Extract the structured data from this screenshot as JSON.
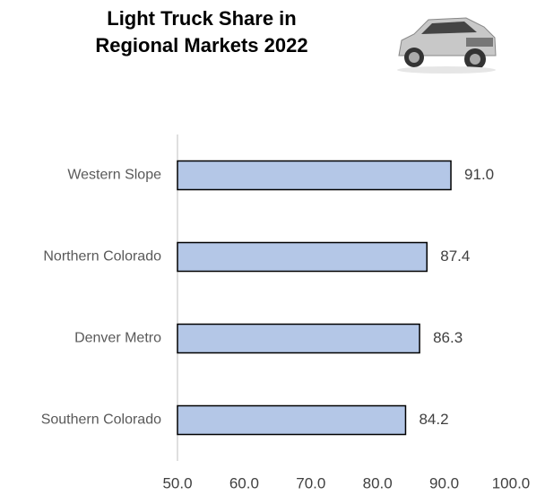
{
  "chart_data": {
    "type": "barh",
    "title": "Light Truck Share in Regional Markets 2022",
    "categories": [
      "Western Slope",
      "Northern Colorado",
      "Denver Metro",
      "Southern Colorado"
    ],
    "values": [
      91.0,
      87.4,
      86.3,
      84.2
    ],
    "value_labels": [
      "91.0",
      "87.4",
      "86.3",
      "84.2"
    ],
    "color": "#b4c7e7",
    "xlim": [
      50,
      100
    ],
    "xticks": [
      {
        "value": 50,
        "label": "50.0"
      },
      {
        "value": 60,
        "label": "60.0"
      },
      {
        "value": 70,
        "label": "70.0"
      },
      {
        "value": 80,
        "label": "80.0"
      },
      {
        "value": 90,
        "label": "90.0"
      },
      {
        "value": 100,
        "label": "100.0"
      }
    ],
    "grid": false
  }
}
